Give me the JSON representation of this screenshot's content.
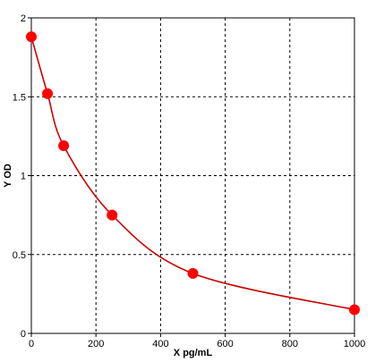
{
  "chart_data": {
    "type": "scatter",
    "title": "",
    "xlabel": "X pg/mL",
    "ylabel": "Y OD",
    "xlim": [
      0,
      1000
    ],
    "ylim": [
      0,
      2
    ],
    "x_ticks": [
      0,
      200,
      400,
      600,
      800,
      1000
    ],
    "y_ticks": [
      0,
      0.5,
      1,
      1.5,
      2
    ],
    "x_tick_labels": [
      "0",
      "200",
      "400",
      "600",
      "800",
      "1000"
    ],
    "y_tick_labels": [
      "0",
      "0.5",
      "1",
      "1.5",
      "2"
    ],
    "grid": true,
    "series": [
      {
        "x": [
          0,
          50,
          100,
          250,
          500,
          1000
        ],
        "y": [
          1.88,
          1.52,
          1.19,
          0.75,
          0.38,
          0.15
        ],
        "marker_color": "#ff0000",
        "line_color": "#cc0000",
        "fit": "smooth-curve"
      }
    ]
  }
}
